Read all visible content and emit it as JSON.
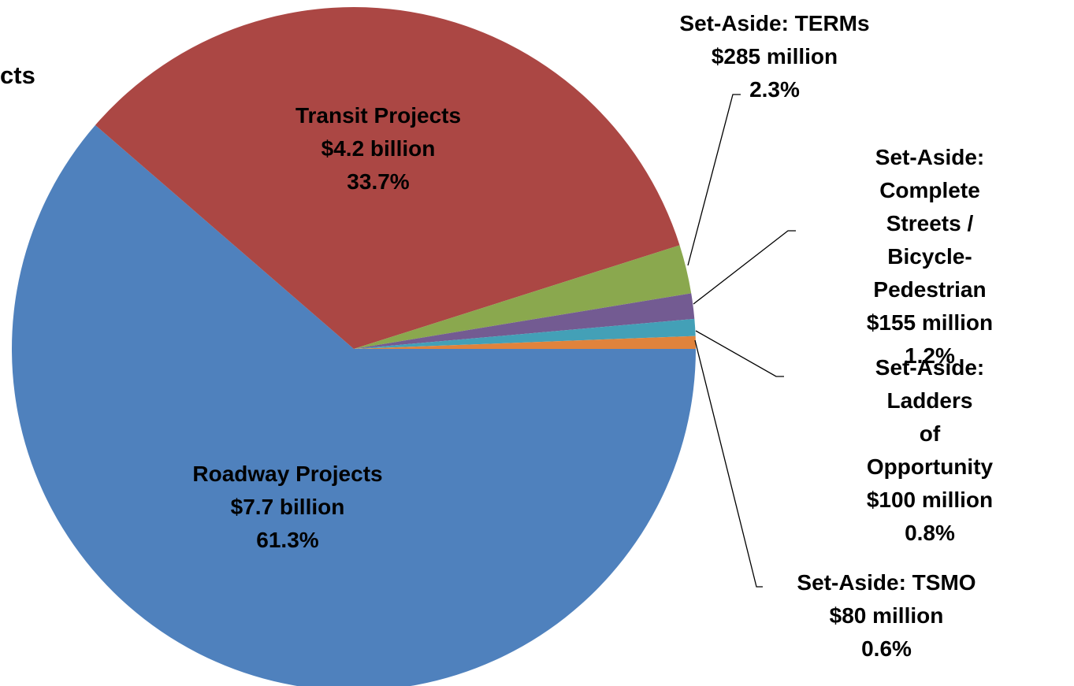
{
  "chart_data": {
    "type": "pie",
    "title": "cts",
    "categories": [
      "Roadway Projects",
      "Transit Projects",
      "Set-Aside: TERMs",
      "Set-Aside:\nComplete Streets /\nBicycle-Pedestrian",
      "Set-Aside: Ladders\nof Opportunity",
      "Set-Aside: TSMO"
    ],
    "amounts": [
      "$7.7 billion",
      "$4.2 billion",
      "$285 million",
      "$155 million",
      "$100 million",
      "$80 million"
    ],
    "values": [
      61.3,
      33.7,
      2.3,
      1.2,
      0.8,
      0.6
    ],
    "value_labels": [
      "61.3%",
      "33.7%",
      "2.3%",
      "1.2%",
      "0.8%",
      "0.6%"
    ],
    "colors": [
      "#4f81bd",
      "#ab4744",
      "#8aa84e",
      "#735b92",
      "#43a0b7",
      "#e0833c"
    ]
  }
}
